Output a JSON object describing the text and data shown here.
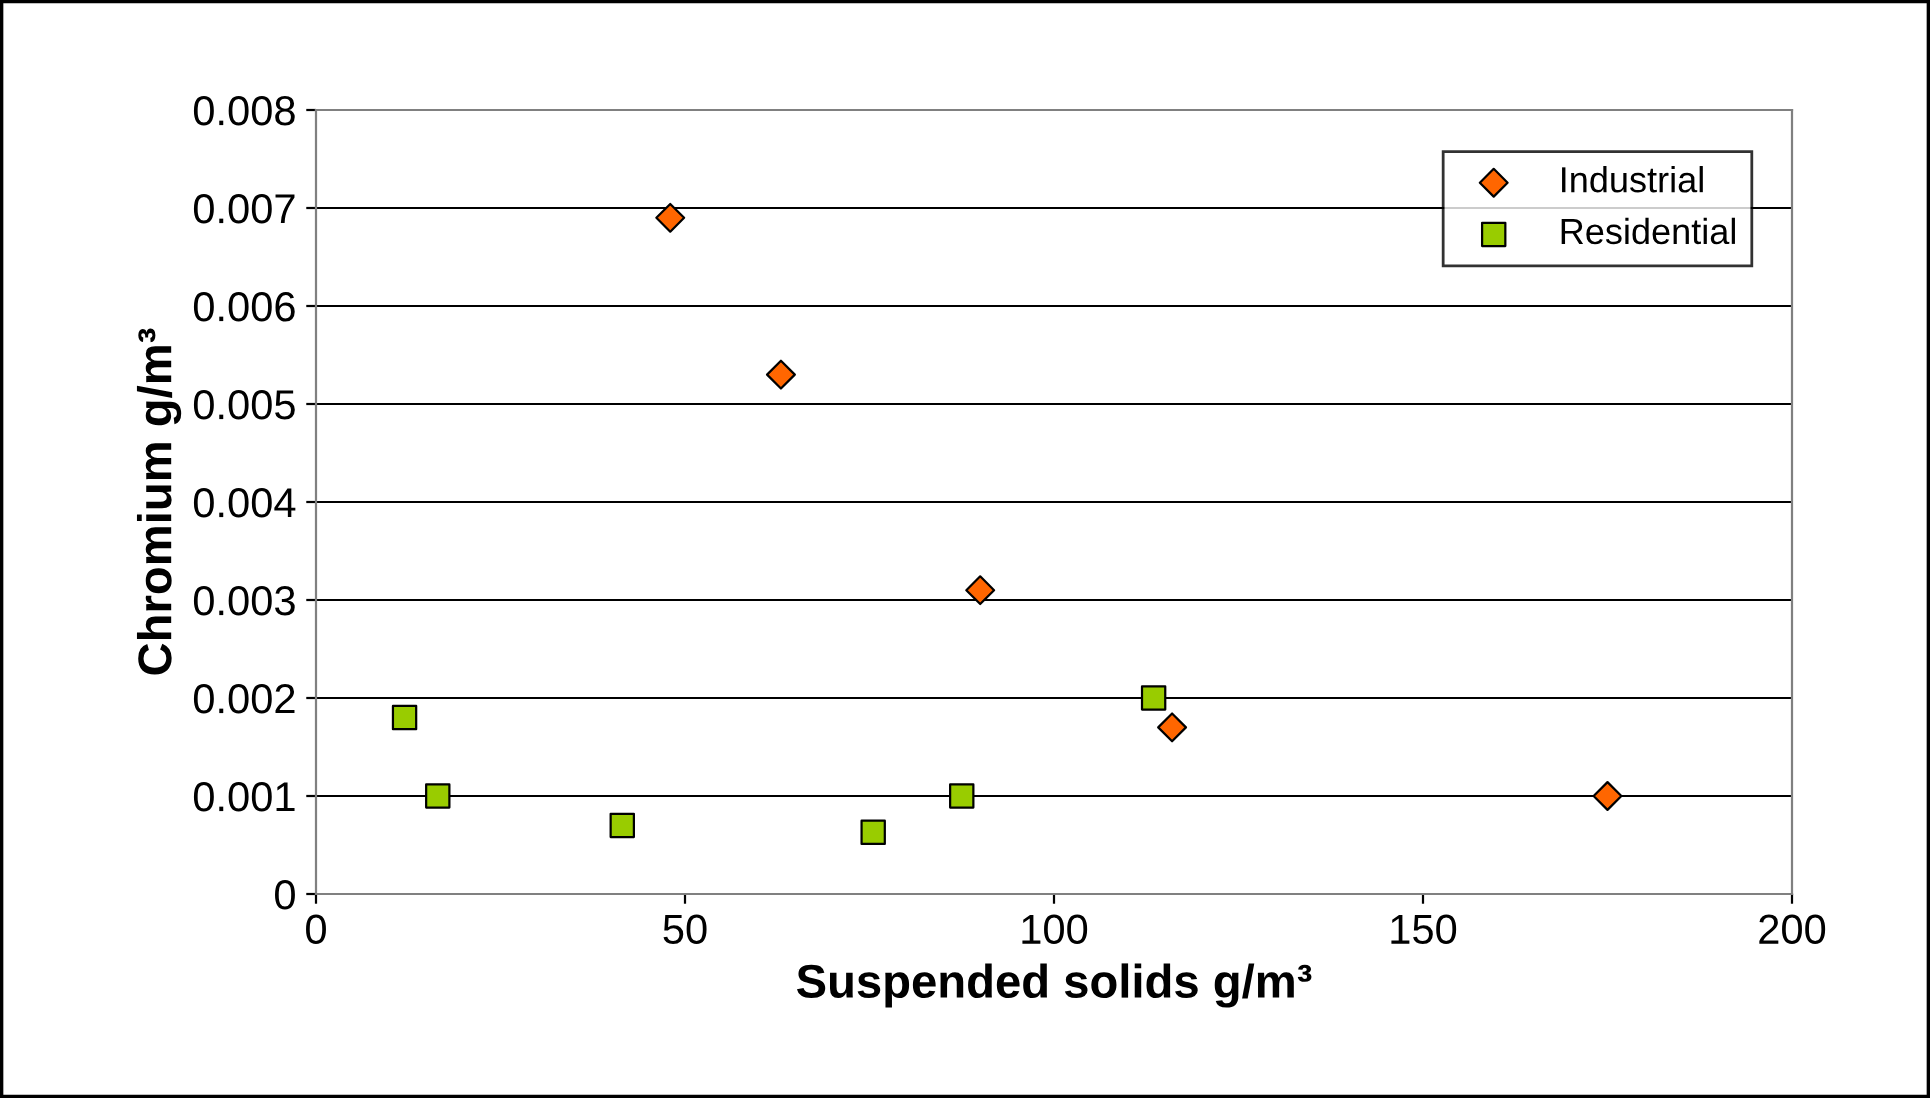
{
  "chart_data": {
    "type": "scatter",
    "xlabel": "Suspended solids g/m³",
    "ylabel": "Chromium g/m³",
    "series": [
      {
        "name": "Industrial",
        "color": "#ff6600",
        "marker": "diamond",
        "x": [
          48,
          63,
          90,
          116,
          175
        ],
        "values": [
          0.0069,
          0.0053,
          0.0031,
          0.0017,
          0.001
        ]
      },
      {
        "name": "Residential",
        "color": "#99cc00",
        "marker": "square",
        "x": [
          12,
          16.5,
          41.5,
          75.5,
          87.5,
          113.5
        ],
        "values": [
          0.0018,
          0.001,
          0.0007,
          0.00063,
          0.001,
          0.002
        ]
      }
    ],
    "xlim": [
      0,
      200
    ],
    "xticks": [
      0,
      50,
      100,
      150,
      200
    ],
    "ylim": [
      0,
      0.008
    ],
    "yticks": [
      0,
      0.001,
      0.002,
      0.003,
      0.004,
      0.005,
      0.006,
      0.007,
      0.008
    ],
    "grid": "y",
    "legend": "top right"
  }
}
